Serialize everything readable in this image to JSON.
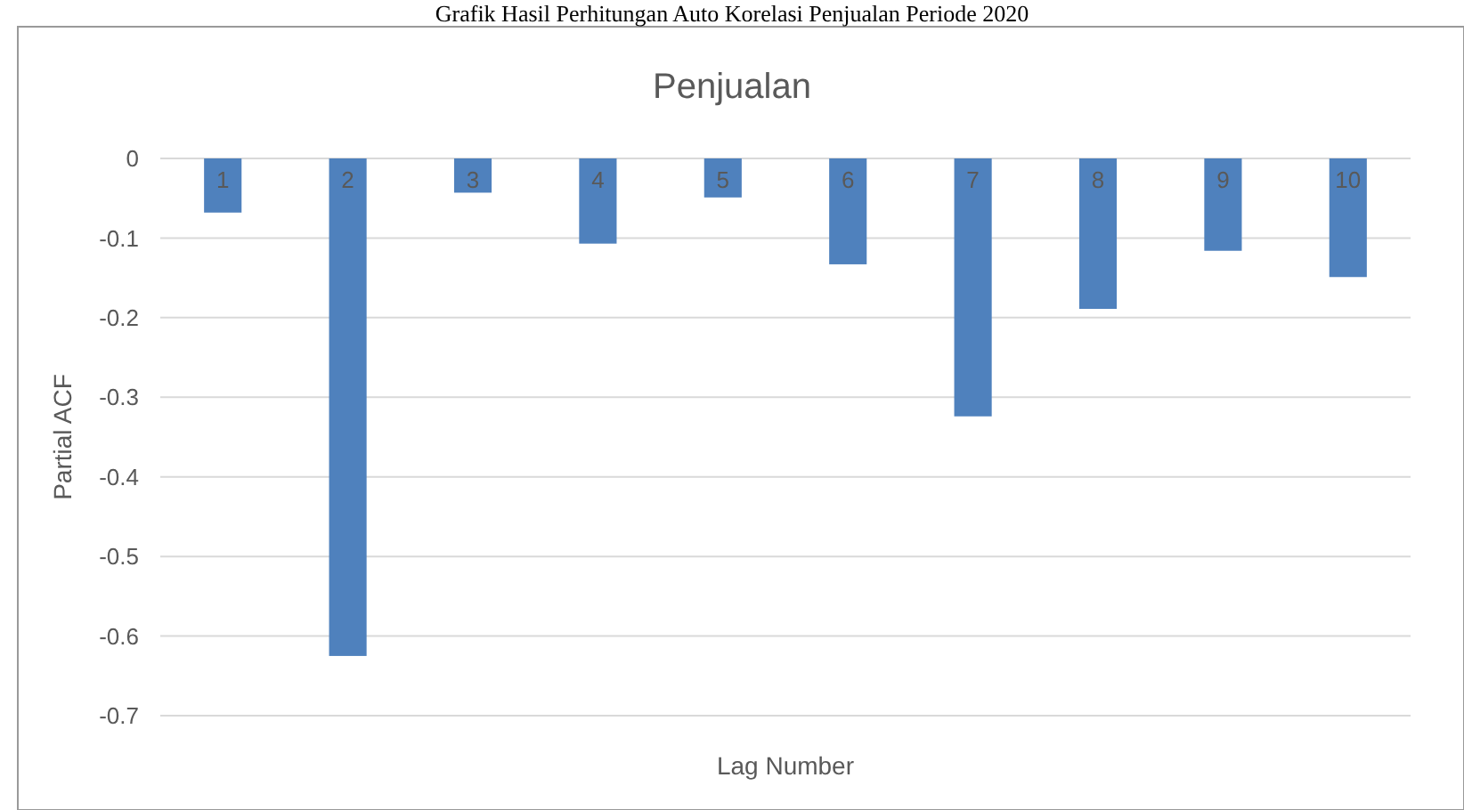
{
  "chart_data": {
    "type": "bar",
    "title": "Penjualan",
    "xlabel": "Lag Number",
    "ylabel": "Partial ACF",
    "annotations": [
      "Grafik Hasil Perhitungan Auto Korelasi Penjualan Periode 2020"
    ],
    "categories": [
      "1",
      "2",
      "3",
      "4",
      "5",
      "6",
      "7",
      "8",
      "9",
      "10"
    ],
    "values": [
      -0.068,
      -0.625,
      -0.043,
      -0.107,
      -0.049,
      -0.133,
      -0.324,
      -0.189,
      -0.116,
      -0.149
    ],
    "color": "#4f81bd",
    "ylim": [
      -0.7,
      0
    ],
    "yticks": [
      {
        "value": 0,
        "label": "0"
      },
      {
        "value": -0.1,
        "label": "-0.1"
      },
      {
        "value": -0.2,
        "label": "-0.2"
      },
      {
        "value": -0.3,
        "label": "-0.3"
      },
      {
        "value": -0.4,
        "label": "-0.4"
      },
      {
        "value": -0.5,
        "label": "-0.5"
      },
      {
        "value": -0.6,
        "label": "-0.6"
      },
      {
        "value": -0.7,
        "label": "-0.7"
      }
    ],
    "grid": "y"
  }
}
